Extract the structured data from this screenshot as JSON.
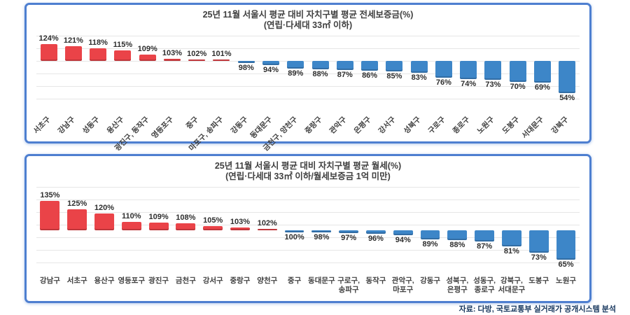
{
  "page": {
    "footer": "자료: 다방, 국토교통부 실거래가 공개시스템 분석"
  },
  "colors": {
    "above_average_bar": "#ea4348",
    "below_average_bar": "#3d86c8",
    "panel_border": "#4e7fd0",
    "gridline": "#e6e6e6",
    "title_text": "#3f3f3f",
    "footer_text": "#17375e"
  },
  "chart_data": [
    {
      "type": "bar",
      "title": "25년 11월 서울시 평균 대비 자치구별 평균 전세보증금(%)",
      "subtitle": "(연립·다세대 33㎡ 이하)",
      "baseline": 100,
      "unit": "%",
      "grid": true,
      "legend": "none",
      "x_label_rotation": -45,
      "color_rule": "value > 100 red, value <= 100 blue",
      "categories": [
        "서초구",
        "강남구",
        "성동구",
        "용산구",
        "광진구, 동작구",
        "영등포구",
        "중구",
        "마포구, 송파구",
        "강동구",
        "동대문구",
        "금천구, 양천구",
        "중랑구",
        "관악구",
        "은평구",
        "강서구",
        "성북구",
        "구로구",
        "종로구",
        "노원구",
        "도봉구",
        "서대문구",
        "강북구"
      ],
      "values": [
        124,
        121,
        118,
        115,
        109,
        103,
        102,
        101,
        98,
        94,
        89,
        88,
        87,
        86,
        85,
        83,
        76,
        74,
        73,
        70,
        69,
        54
      ]
    },
    {
      "type": "bar",
      "title": "25년 11월 서울시 평균 대비 자치구별 평균 월세(%)",
      "subtitle": "(연립·다세대 33㎡ 이하/월세보증금 1억 미만)",
      "baseline": 100,
      "unit": "%",
      "grid": true,
      "legend": "none",
      "x_label_rotation": 0,
      "color_rule": "value > 100 red, value <= 100 blue",
      "categories": [
        "강남구",
        "서초구",
        "용산구",
        "영등포구",
        "광진구",
        "금천구",
        "강서구",
        "중랑구",
        "양천구",
        "중구",
        "동대문구",
        "구로구,\n송파구",
        "동작구",
        "관악구,\n마포구",
        "강동구",
        "성북구,\n은평구",
        "성동구,\n종로구",
        "강북구,\n서대문구",
        "도봉구",
        "노원구"
      ],
      "values": [
        135,
        125,
        120,
        110,
        109,
        108,
        105,
        103,
        102,
        100,
        98,
        97,
        96,
        94,
        89,
        88,
        87,
        81,
        73,
        65
      ]
    }
  ]
}
